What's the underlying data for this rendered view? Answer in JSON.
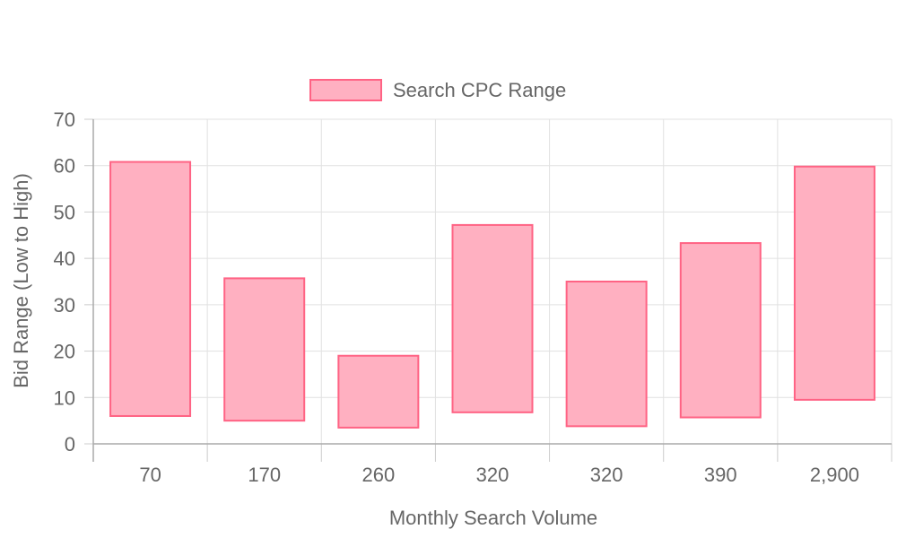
{
  "chart_data": {
    "type": "bar",
    "subtype": "floating-range",
    "categories": [
      "70",
      "170",
      "260",
      "320",
      "320",
      "390",
      "2,900"
    ],
    "series": [
      {
        "name": "Search CPC Range",
        "ranges": [
          [
            6,
            60.8
          ],
          [
            5,
            35.7
          ],
          [
            3.5,
            19
          ],
          [
            6.8,
            47.2
          ],
          [
            3.8,
            35
          ],
          [
            5.7,
            43.3
          ],
          [
            9.5,
            59.8
          ]
        ],
        "color": "#ffb0c1",
        "border_color": "#ff6384"
      }
    ],
    "xlabel": "Monthly Search Volume",
    "ylabel": "Bid Range (Low to High)",
    "ylim": [
      0,
      70
    ],
    "yticks": [
      0,
      10,
      20,
      30,
      40,
      50,
      60,
      70
    ],
    "grid": true,
    "legend_position": "top"
  }
}
